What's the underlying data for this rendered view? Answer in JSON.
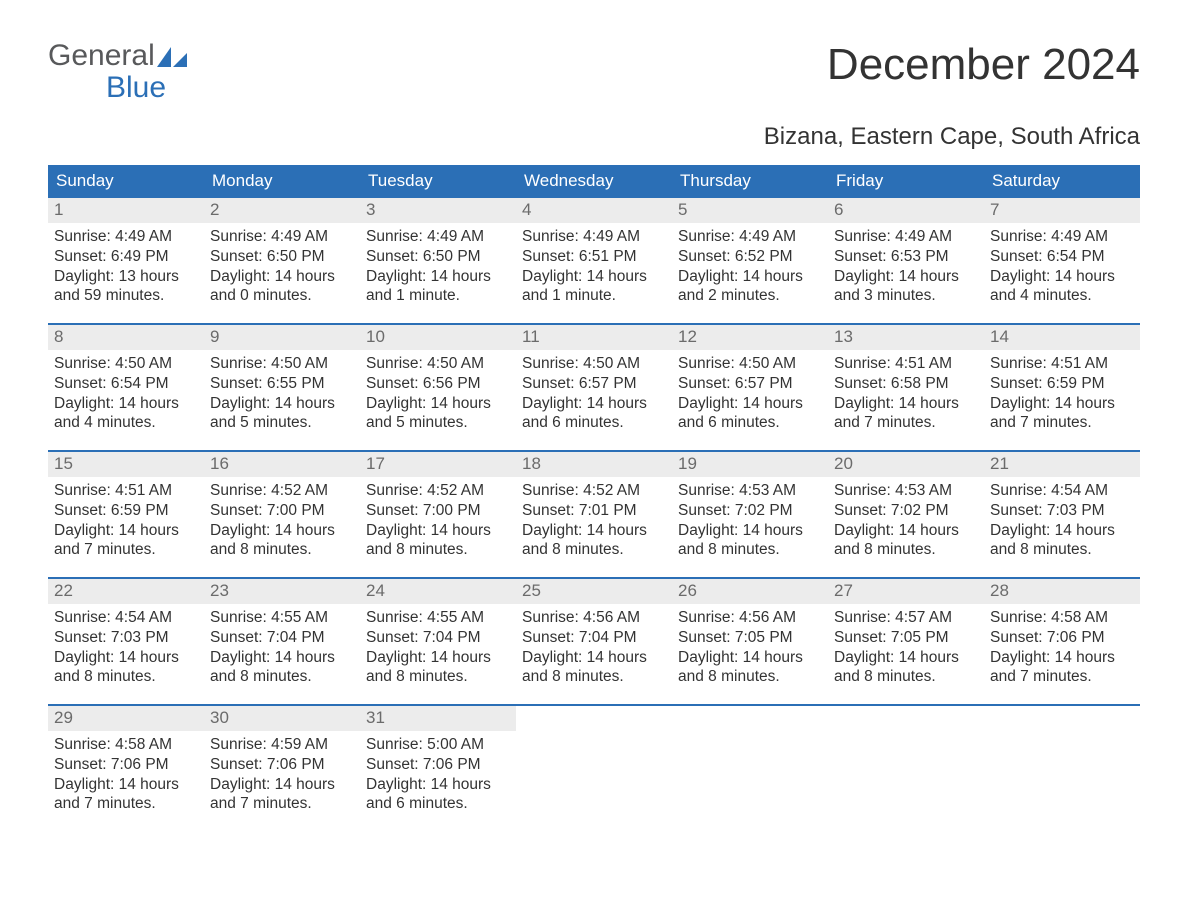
{
  "brand": {
    "word1": "General",
    "word2": "Blue",
    "logo_color": "#2b6fb6"
  },
  "title": "December 2024",
  "subtitle": "Bizana, Eastern Cape, South Africa",
  "colors": {
    "header_bg": "#2b6fb6",
    "header_text": "#ffffff",
    "daynum_bg": "#ececec",
    "daynum_text": "#6b6b6b",
    "body_text": "#333333",
    "week_rule": "#2b6fb6",
    "page_bg": "#ffffff"
  },
  "day_names": [
    "Sunday",
    "Monday",
    "Tuesday",
    "Wednesday",
    "Thursday",
    "Friday",
    "Saturday"
  ],
  "days": [
    {
      "n": "1",
      "sr": "4:49 AM",
      "ss": "6:49 PM",
      "dl": "13 hours and 59 minutes."
    },
    {
      "n": "2",
      "sr": "4:49 AM",
      "ss": "6:50 PM",
      "dl": "14 hours and 0 minutes."
    },
    {
      "n": "3",
      "sr": "4:49 AM",
      "ss": "6:50 PM",
      "dl": "14 hours and 1 minute."
    },
    {
      "n": "4",
      "sr": "4:49 AM",
      "ss": "6:51 PM",
      "dl": "14 hours and 1 minute."
    },
    {
      "n": "5",
      "sr": "4:49 AM",
      "ss": "6:52 PM",
      "dl": "14 hours and 2 minutes."
    },
    {
      "n": "6",
      "sr": "4:49 AM",
      "ss": "6:53 PM",
      "dl": "14 hours and 3 minutes."
    },
    {
      "n": "7",
      "sr": "4:49 AM",
      "ss": "6:54 PM",
      "dl": "14 hours and 4 minutes."
    },
    {
      "n": "8",
      "sr": "4:50 AM",
      "ss": "6:54 PM",
      "dl": "14 hours and 4 minutes."
    },
    {
      "n": "9",
      "sr": "4:50 AM",
      "ss": "6:55 PM",
      "dl": "14 hours and 5 minutes."
    },
    {
      "n": "10",
      "sr": "4:50 AM",
      "ss": "6:56 PM",
      "dl": "14 hours and 5 minutes."
    },
    {
      "n": "11",
      "sr": "4:50 AM",
      "ss": "6:57 PM",
      "dl": "14 hours and 6 minutes."
    },
    {
      "n": "12",
      "sr": "4:50 AM",
      "ss": "6:57 PM",
      "dl": "14 hours and 6 minutes."
    },
    {
      "n": "13",
      "sr": "4:51 AM",
      "ss": "6:58 PM",
      "dl": "14 hours and 7 minutes."
    },
    {
      "n": "14",
      "sr": "4:51 AM",
      "ss": "6:59 PM",
      "dl": "14 hours and 7 minutes."
    },
    {
      "n": "15",
      "sr": "4:51 AM",
      "ss": "6:59 PM",
      "dl": "14 hours and 7 minutes."
    },
    {
      "n": "16",
      "sr": "4:52 AM",
      "ss": "7:00 PM",
      "dl": "14 hours and 8 minutes."
    },
    {
      "n": "17",
      "sr": "4:52 AM",
      "ss": "7:00 PM",
      "dl": "14 hours and 8 minutes."
    },
    {
      "n": "18",
      "sr": "4:52 AM",
      "ss": "7:01 PM",
      "dl": "14 hours and 8 minutes."
    },
    {
      "n": "19",
      "sr": "4:53 AM",
      "ss": "7:02 PM",
      "dl": "14 hours and 8 minutes."
    },
    {
      "n": "20",
      "sr": "4:53 AM",
      "ss": "7:02 PM",
      "dl": "14 hours and 8 minutes."
    },
    {
      "n": "21",
      "sr": "4:54 AM",
      "ss": "7:03 PM",
      "dl": "14 hours and 8 minutes."
    },
    {
      "n": "22",
      "sr": "4:54 AM",
      "ss": "7:03 PM",
      "dl": "14 hours and 8 minutes."
    },
    {
      "n": "23",
      "sr": "4:55 AM",
      "ss": "7:04 PM",
      "dl": "14 hours and 8 minutes."
    },
    {
      "n": "24",
      "sr": "4:55 AM",
      "ss": "7:04 PM",
      "dl": "14 hours and 8 minutes."
    },
    {
      "n": "25",
      "sr": "4:56 AM",
      "ss": "7:04 PM",
      "dl": "14 hours and 8 minutes."
    },
    {
      "n": "26",
      "sr": "4:56 AM",
      "ss": "7:05 PM",
      "dl": "14 hours and 8 minutes."
    },
    {
      "n": "27",
      "sr": "4:57 AM",
      "ss": "7:05 PM",
      "dl": "14 hours and 8 minutes."
    },
    {
      "n": "28",
      "sr": "4:58 AM",
      "ss": "7:06 PM",
      "dl": "14 hours and 7 minutes."
    },
    {
      "n": "29",
      "sr": "4:58 AM",
      "ss": "7:06 PM",
      "dl": "14 hours and 7 minutes."
    },
    {
      "n": "30",
      "sr": "4:59 AM",
      "ss": "7:06 PM",
      "dl": "14 hours and 7 minutes."
    },
    {
      "n": "31",
      "sr": "5:00 AM",
      "ss": "7:06 PM",
      "dl": "14 hours and 6 minutes."
    }
  ],
  "labels": {
    "sunrise": "Sunrise: ",
    "sunset": "Sunset: ",
    "daylight": "Daylight: "
  },
  "layout": {
    "first_day_column": 0,
    "columns": 7
  }
}
